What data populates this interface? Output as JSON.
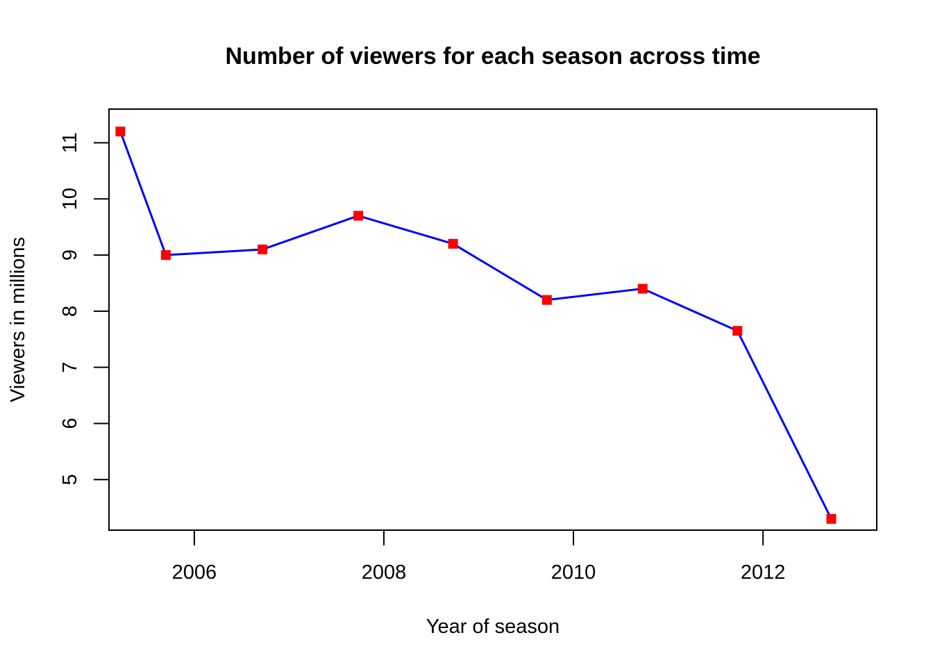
{
  "chart_data": {
    "type": "line",
    "title": "Number of viewers for each season across time",
    "xlabel": "Year of season",
    "ylabel": "Viewers in millions",
    "xlim": [
      2005.1,
      2013.2
    ],
    "ylim": [
      4.1,
      11.6
    ],
    "x_ticks": [
      2006,
      2008,
      2010,
      2012
    ],
    "y_ticks": [
      5,
      6,
      7,
      8,
      9,
      10,
      11
    ],
    "grid": false,
    "legend": "none",
    "series": [
      {
        "x": [
          2005.22,
          2005.7,
          2006.72,
          2007.73,
          2008.73,
          2009.72,
          2010.73,
          2011.73,
          2012.72
        ],
        "y": [
          11.2,
          9.0,
          9.1,
          9.7,
          9.2,
          8.2,
          8.4,
          7.65,
          4.3
        ],
        "line_color": "#0000ff",
        "marker_color": "#ff0000",
        "marker": "square"
      }
    ]
  }
}
